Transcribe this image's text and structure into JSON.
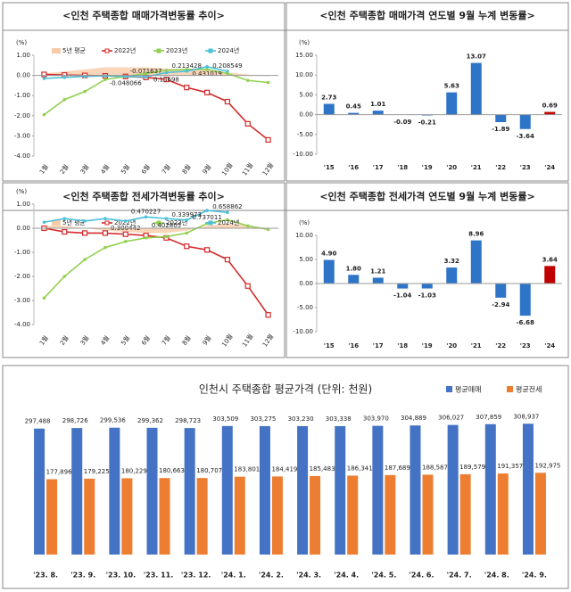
{
  "chart_data": [
    {
      "type": "line",
      "title": "<인천 주택종합 매매가격변동률 추이>",
      "y_unit": "(%)",
      "categories": [
        "1월",
        "2월",
        "3월",
        "4월",
        "5월",
        "6월",
        "7월",
        "8월",
        "9월",
        "10월",
        "11월",
        "12월"
      ],
      "ylim": [
        -4,
        1
      ],
      "yticks": [
        {
          "value": 1,
          "label": "1.00"
        },
        {
          "value": 0,
          "label": "0.00"
        },
        {
          "value": -1,
          "label": "-1.00"
        },
        {
          "value": -2,
          "label": "-2.00"
        },
        {
          "value": -3,
          "label": "-3.00"
        },
        {
          "value": -4,
          "label": "-4.00"
        }
      ],
      "series": [
        {
          "name": "5년 평균",
          "color": "#f8cba8",
          "area": true,
          "values": [
            0.1,
            0.2,
            0.3,
            0.4,
            0.4,
            0.4,
            0.35,
            0.3,
            0.25,
            0.15,
            0.05,
            -0.05
          ]
        },
        {
          "name": "2022년",
          "color": "#d42a2a",
          "marker": "square",
          "values": [
            0.05,
            0.02,
            0.0,
            -0.02,
            -0.05,
            -0.1,
            -0.2,
            -0.6,
            -0.85,
            -1.3,
            -2.4,
            -3.2
          ]
        },
        {
          "name": "2023년",
          "color": "#92d050",
          "values": [
            -1.95,
            -1.2,
            -0.8,
            -0.2,
            -0.05,
            0.1,
            0.25,
            0.3,
            0.3,
            0.1,
            -0.25,
            -0.35
          ]
        },
        {
          "name": "2024년",
          "color": "#4bc0d9",
          "values": [
            -0.15,
            -0.1,
            -0.05,
            -0.02,
            -0.048066,
            -0.071637,
            0.13698,
            0.213428,
            0.431019,
            0.208549,
            null,
            null
          ],
          "value_labels": [
            null,
            null,
            null,
            null,
            "-0.048066",
            "-0.071637",
            "0.13698",
            "0.213428",
            "0.431019",
            "0.208549",
            null,
            null
          ]
        }
      ]
    },
    {
      "type": "bar",
      "title": "<인천 주택종합 매매가격 연도별 9월 누계 변동률>",
      "y_unit": "(%)",
      "categories": [
        "'15",
        "'16",
        "'17",
        "'18",
        "'19",
        "'20",
        "'21",
        "'22",
        "'23",
        "'24"
      ],
      "values": [
        2.73,
        0.45,
        1.01,
        -0.09,
        -0.21,
        5.63,
        13.07,
        -1.89,
        -3.64,
        0.69
      ],
      "value_labels": [
        "2.73",
        "0.45",
        "1.01",
        "-0.09",
        "-0.21",
        "5.63",
        "13.07",
        "-1.89",
        "-3.64",
        "0.69"
      ],
      "colors": [
        "#2e75c8",
        "#2e75c8",
        "#2e75c8",
        "#2e75c8",
        "#2e75c8",
        "#2e75c8",
        "#2e75c8",
        "#2e75c8",
        "#2e75c8",
        "#c00000"
      ],
      "ylim": [
        -10,
        15
      ],
      "yticks": [
        {
          "value": 15,
          "label": "15.00"
        },
        {
          "value": 10,
          "label": "10.00"
        },
        {
          "value": 5,
          "label": "5.00"
        },
        {
          "value": 0,
          "label": "0.00"
        },
        {
          "value": -5,
          "label": "-5.00"
        },
        {
          "value": -10,
          "label": "-10.00"
        }
      ]
    },
    {
      "type": "line",
      "title": "<인천 주택종합 전세가격변동률 추이>",
      "y_unit": "(%)",
      "categories": [
        "1월",
        "2월",
        "3월",
        "4월",
        "5월",
        "6월",
        "7월",
        "8월",
        "9월",
        "10월",
        "11월",
        "12월"
      ],
      "ylim": [
        -4,
        1
      ],
      "yticks": [
        {
          "value": 1,
          "label": "1.00"
        },
        {
          "value": 0,
          "label": "0.00"
        },
        {
          "value": -1,
          "label": "-1.00"
        },
        {
          "value": -2,
          "label": "-2.00"
        },
        {
          "value": -3,
          "label": "-3.00"
        },
        {
          "value": -4,
          "label": "-4.00"
        }
      ],
      "series": [
        {
          "name": "5년 평균",
          "color": "#f8cba8",
          "area": true,
          "values": [
            0.1,
            0.1,
            0.0,
            -0.1,
            -0.15,
            -0.2,
            -0.2,
            -0.1,
            0.1,
            0.2,
            0.1,
            0.0
          ]
        },
        {
          "name": "2022년",
          "color": "#d42a2a",
          "marker": "square",
          "values": [
            0.0,
            -0.15,
            -0.2,
            -0.2,
            -0.25,
            -0.3,
            -0.4,
            -0.75,
            -0.9,
            -1.3,
            -2.4,
            -3.6
          ]
        },
        {
          "name": "2023년",
          "color": "#92d050",
          "values": [
            -2.9,
            -2.0,
            -1.3,
            -0.8,
            -0.55,
            -0.4,
            -0.35,
            -0.2,
            0.2,
            0.35,
            0.1,
            -0.05
          ]
        },
        {
          "name": "2024년",
          "color": "#4bc0d9",
          "values": [
            0.25,
            0.4,
            0.3,
            0.4,
            0.300442,
            0.470227,
            0.402805,
            0.339973,
            0.737011,
            0.658862,
            null,
            null
          ],
          "value_labels": [
            null,
            null,
            null,
            null,
            "0.300442",
            "0.470227",
            "0.402805",
            "0.339973",
            "0.737011",
            "0.658862",
            null,
            null
          ]
        }
      ]
    },
    {
      "type": "bar",
      "title": "<인천 주택종합 전세가격 연도별 9월 누계 변동률>",
      "y_unit": "(%)",
      "categories": [
        "'15",
        "'16",
        "'17",
        "'18",
        "'19",
        "'20",
        "'21",
        "'22",
        "'23",
        "'24"
      ],
      "values": [
        4.9,
        1.8,
        1.21,
        -1.04,
        -1.03,
        3.32,
        8.96,
        -2.94,
        -6.68,
        3.64
      ],
      "value_labels": [
        "4.90",
        "1.80",
        "1.21",
        "-1.04",
        "-1.03",
        "3.32",
        "8.96",
        "-2.94",
        "-6.68",
        "3.64"
      ],
      "colors": [
        "#2e75c8",
        "#2e75c8",
        "#2e75c8",
        "#2e75c8",
        "#2e75c8",
        "#2e75c8",
        "#2e75c8",
        "#2e75c8",
        "#2e75c8",
        "#c00000"
      ],
      "ylim": [
        -10,
        10
      ],
      "yticks": [
        {
          "value": 10,
          "label": "10.00"
        },
        {
          "value": 5,
          "label": "5.00"
        },
        {
          "value": 0,
          "label": "0.00"
        },
        {
          "value": -5,
          "label": "-5.00"
        },
        {
          "value": -10,
          "label": "-10.00"
        }
      ]
    },
    {
      "type": "groupbar",
      "title": "인천시 주택종합 평균가격 (단위: 천원)",
      "categories": [
        "'23. 8.",
        "'23. 9.",
        "'23. 10.",
        "'23. 11.",
        "'23. 12.",
        "'24. 1.",
        "'24. 2.",
        "'24. 3.",
        "'24. 4.",
        "'24. 5.",
        "'24. 6.",
        "'24. 7.",
        "'24. 8.",
        "'24. 9."
      ],
      "ylim": [
        0,
        320000
      ],
      "series": [
        {
          "name": "평균매매",
          "color": "#4472c4",
          "label_color": "#4472c4",
          "values": [
            297488,
            298726,
            299536,
            299362,
            298723,
            303509,
            303275,
            303230,
            303338,
            303970,
            304889,
            306027,
            307859,
            308937
          ],
          "value_labels": [
            "297,488",
            "298,726",
            "299,536",
            "299,362",
            "298,723",
            "303,509",
            "303,275",
            "303,230",
            "303,338",
            "303,970",
            "304,889",
            "306,027",
            "307,859",
            "308,937"
          ]
        },
        {
          "name": "평균전세",
          "color": "#ed7d31",
          "label_color": "#222222",
          "values": [
            177896,
            179225,
            180229,
            180663,
            180707,
            183801,
            184419,
            185483,
            186341,
            187689,
            188587,
            189579,
            191357,
            192975
          ],
          "value_labels": [
            "177,896",
            "179,225",
            "180,229",
            "180,663",
            "180,707",
            "183,801",
            "184,419",
            "185,483",
            "186,341",
            "187,689",
            "188,587",
            "189,579",
            "191,357",
            "192,975"
          ]
        }
      ]
    }
  ]
}
